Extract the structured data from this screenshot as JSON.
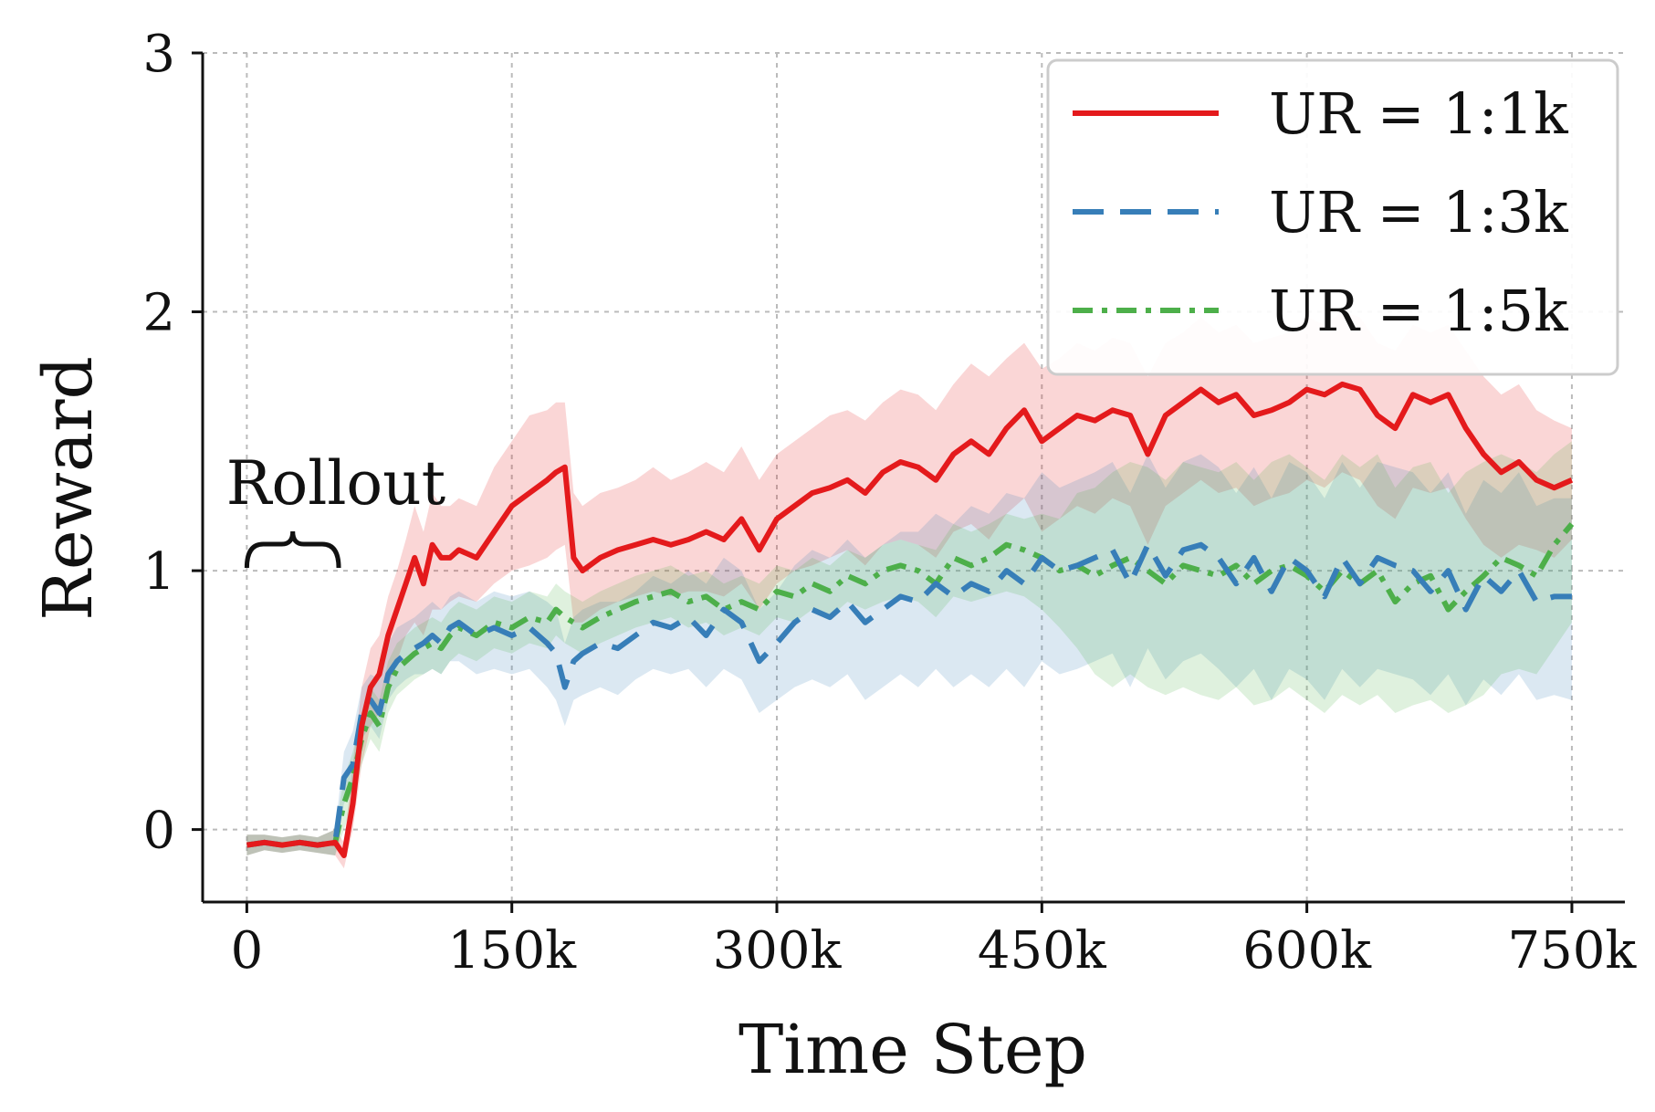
{
  "chart_data": {
    "type": "line",
    "xlabel": "Time Step",
    "ylabel": "Reward",
    "xlim": [
      -25000,
      780000
    ],
    "ylim": [
      -0.28,
      3.0
    ],
    "x_ticks": [
      0,
      150000,
      300000,
      450000,
      600000,
      750000
    ],
    "x_tick_labels": [
      "0",
      "150k",
      "300k",
      "450k",
      "600k",
      "750k"
    ],
    "y_ticks": [
      0,
      1,
      2,
      3
    ],
    "y_tick_labels": [
      "0",
      "1",
      "2",
      "3"
    ],
    "grid": true,
    "legend_position": "top-right",
    "annotation": {
      "text": "Rollout",
      "x_range": [
        0,
        52000
      ]
    },
    "series": [
      {
        "name": "UR = 1:1k",
        "color": "#e41a1c",
        "style": "solid",
        "x": [
          0,
          10000,
          20000,
          30000,
          40000,
          50000,
          55000,
          60000,
          65000,
          70000,
          75000,
          80000,
          85000,
          90000,
          95000,
          100000,
          105000,
          110000,
          115000,
          120000,
          130000,
          140000,
          150000,
          160000,
          170000,
          175000,
          180000,
          185000,
          190000,
          200000,
          210000,
          220000,
          230000,
          240000,
          250000,
          260000,
          270000,
          280000,
          290000,
          300000,
          310000,
          320000,
          330000,
          340000,
          350000,
          360000,
          370000,
          380000,
          390000,
          400000,
          410000,
          420000,
          430000,
          440000,
          450000,
          460000,
          470000,
          480000,
          490000,
          500000,
          510000,
          520000,
          530000,
          540000,
          550000,
          560000,
          570000,
          580000,
          590000,
          600000,
          610000,
          620000,
          630000,
          640000,
          650000,
          660000,
          670000,
          680000,
          690000,
          700000,
          710000,
          720000,
          730000,
          740000,
          750000
        ],
        "y": [
          -0.06,
          -0.05,
          -0.06,
          -0.05,
          -0.06,
          -0.05,
          -0.1,
          0.1,
          0.4,
          0.55,
          0.6,
          0.75,
          0.85,
          0.95,
          1.05,
          0.95,
          1.1,
          1.05,
          1.05,
          1.08,
          1.05,
          1.15,
          1.25,
          1.3,
          1.35,
          1.38,
          1.4,
          1.05,
          1.0,
          1.05,
          1.08,
          1.1,
          1.12,
          1.1,
          1.12,
          1.15,
          1.12,
          1.2,
          1.08,
          1.2,
          1.25,
          1.3,
          1.32,
          1.35,
          1.3,
          1.38,
          1.42,
          1.4,
          1.35,
          1.45,
          1.5,
          1.45,
          1.55,
          1.62,
          1.5,
          1.55,
          1.6,
          1.58,
          1.62,
          1.6,
          1.45,
          1.6,
          1.65,
          1.7,
          1.65,
          1.68,
          1.6,
          1.62,
          1.65,
          1.7,
          1.68,
          1.72,
          1.7,
          1.6,
          1.55,
          1.68,
          1.65,
          1.68,
          1.55,
          1.45,
          1.38,
          1.42,
          1.35,
          1.32,
          1.35
        ],
        "band_low": [
          -0.1,
          -0.08,
          -0.09,
          -0.08,
          -0.09,
          -0.1,
          -0.15,
          0.0,
          0.25,
          0.4,
          0.45,
          0.55,
          0.65,
          0.75,
          0.8,
          0.75,
          0.85,
          0.85,
          0.88,
          0.9,
          0.88,
          0.95,
          1.0,
          1.02,
          1.05,
          1.08,
          1.1,
          0.8,
          0.8,
          0.85,
          0.88,
          0.9,
          0.92,
          0.9,
          0.92,
          0.92,
          0.9,
          0.95,
          0.85,
          0.95,
          1.0,
          1.02,
          1.05,
          1.08,
          1.02,
          1.1,
          1.12,
          1.1,
          1.05,
          1.15,
          1.18,
          1.12,
          1.22,
          1.28,
          1.15,
          1.2,
          1.25,
          1.22,
          1.28,
          1.25,
          1.1,
          1.25,
          1.3,
          1.35,
          1.3,
          1.32,
          1.25,
          1.28,
          1.3,
          1.35,
          1.32,
          1.38,
          1.35,
          1.25,
          1.2,
          1.32,
          1.3,
          1.32,
          1.2,
          1.1,
          1.05,
          1.1,
          1.08,
          1.05,
          1.12
        ],
        "band_high": [
          -0.02,
          -0.02,
          -0.03,
          -0.02,
          -0.03,
          0.0,
          -0.05,
          0.25,
          0.55,
          0.7,
          0.75,
          0.9,
          1.0,
          1.12,
          1.25,
          1.15,
          1.3,
          1.25,
          1.25,
          1.28,
          1.25,
          1.4,
          1.5,
          1.6,
          1.62,
          1.65,
          1.65,
          1.3,
          1.25,
          1.3,
          1.32,
          1.35,
          1.4,
          1.35,
          1.38,
          1.42,
          1.38,
          1.48,
          1.35,
          1.45,
          1.5,
          1.55,
          1.6,
          1.62,
          1.58,
          1.65,
          1.7,
          1.68,
          1.62,
          1.72,
          1.8,
          1.75,
          1.82,
          1.88,
          1.78,
          1.82,
          1.88,
          1.85,
          1.9,
          1.88,
          1.75,
          1.88,
          1.92,
          1.98,
          1.92,
          1.95,
          1.88,
          1.9,
          1.92,
          1.98,
          1.95,
          2.0,
          1.98,
          1.88,
          1.85,
          1.95,
          1.92,
          1.95,
          1.85,
          1.75,
          1.68,
          1.72,
          1.62,
          1.58,
          1.55
        ]
      },
      {
        "name": "UR = 1:3k",
        "color": "#377eb8",
        "style": "dashed",
        "x": [
          0,
          10000,
          20000,
          30000,
          40000,
          50000,
          55000,
          60000,
          65000,
          70000,
          75000,
          80000,
          85000,
          90000,
          95000,
          100000,
          105000,
          110000,
          115000,
          120000,
          130000,
          140000,
          150000,
          160000,
          170000,
          175000,
          180000,
          185000,
          190000,
          200000,
          210000,
          220000,
          230000,
          240000,
          250000,
          260000,
          270000,
          280000,
          290000,
          300000,
          310000,
          320000,
          330000,
          340000,
          350000,
          360000,
          370000,
          380000,
          390000,
          400000,
          410000,
          420000,
          430000,
          440000,
          450000,
          460000,
          470000,
          480000,
          490000,
          500000,
          510000,
          520000,
          530000,
          540000,
          550000,
          560000,
          570000,
          580000,
          590000,
          600000,
          610000,
          620000,
          630000,
          640000,
          650000,
          660000,
          670000,
          680000,
          690000,
          700000,
          710000,
          720000,
          730000,
          740000,
          750000
        ],
        "y": [
          -0.06,
          -0.05,
          -0.06,
          -0.05,
          -0.06,
          -0.05,
          0.2,
          0.25,
          0.45,
          0.5,
          0.45,
          0.6,
          0.65,
          0.68,
          0.7,
          0.72,
          0.75,
          0.72,
          0.78,
          0.8,
          0.75,
          0.78,
          0.75,
          0.78,
          0.72,
          0.68,
          0.55,
          0.65,
          0.68,
          0.72,
          0.7,
          0.75,
          0.8,
          0.78,
          0.82,
          0.75,
          0.85,
          0.8,
          0.65,
          0.72,
          0.8,
          0.85,
          0.82,
          0.88,
          0.8,
          0.85,
          0.9,
          0.88,
          0.95,
          0.9,
          0.95,
          0.92,
          1.0,
          0.95,
          1.05,
          1.0,
          1.02,
          1.05,
          1.08,
          0.95,
          1.1,
          0.98,
          1.08,
          1.1,
          1.05,
          0.95,
          1.05,
          0.92,
          1.05,
          1.0,
          0.9,
          1.05,
          0.95,
          1.05,
          1.02,
          1.0,
          0.92,
          1.0,
          0.85,
          0.98,
          0.92,
          1.0,
          0.88,
          0.9,
          0.9
        ],
        "band_low": [
          -0.1,
          -0.08,
          -0.09,
          -0.08,
          -0.09,
          -0.1,
          0.1,
          0.15,
          0.35,
          0.4,
          0.35,
          0.5,
          0.55,
          0.58,
          0.6,
          0.6,
          0.62,
          0.6,
          0.65,
          0.65,
          0.6,
          0.62,
          0.6,
          0.62,
          0.55,
          0.5,
          0.4,
          0.5,
          0.52,
          0.55,
          0.52,
          0.58,
          0.62,
          0.6,
          0.62,
          0.55,
          0.62,
          0.58,
          0.45,
          0.5,
          0.55,
          0.58,
          0.55,
          0.6,
          0.5,
          0.55,
          0.6,
          0.55,
          0.62,
          0.55,
          0.6,
          0.55,
          0.62,
          0.55,
          0.65,
          0.6,
          0.62,
          0.65,
          0.68,
          0.55,
          0.7,
          0.58,
          0.65,
          0.68,
          0.62,
          0.55,
          0.62,
          0.5,
          0.62,
          0.58,
          0.5,
          0.62,
          0.55,
          0.62,
          0.6,
          0.58,
          0.52,
          0.6,
          0.48,
          0.58,
          0.52,
          0.6,
          0.5,
          0.52,
          0.5
        ],
        "band_high": [
          -0.02,
          -0.02,
          -0.03,
          -0.02,
          -0.03,
          0.0,
          0.3,
          0.38,
          0.55,
          0.6,
          0.58,
          0.72,
          0.78,
          0.8,
          0.82,
          0.85,
          0.88,
          0.85,
          0.9,
          0.92,
          0.88,
          0.92,
          0.9,
          0.92,
          0.88,
          0.85,
          0.72,
          0.82,
          0.85,
          0.88,
          0.88,
          0.92,
          0.98,
          0.95,
          1.0,
          0.95,
          1.05,
          1.0,
          0.85,
          0.92,
          1.02,
          1.08,
          1.05,
          1.12,
          1.05,
          1.1,
          1.15,
          1.15,
          1.22,
          1.18,
          1.25,
          1.22,
          1.3,
          1.28,
          1.38,
          1.32,
          1.35,
          1.38,
          1.42,
          1.3,
          1.45,
          1.32,
          1.42,
          1.45,
          1.4,
          1.3,
          1.4,
          1.28,
          1.42,
          1.38,
          1.28,
          1.42,
          1.32,
          1.42,
          1.4,
          1.38,
          1.3,
          1.38,
          1.22,
          1.35,
          1.3,
          1.38,
          1.25,
          1.28,
          1.28
        ]
      },
      {
        "name": "UR = 1:5k",
        "color": "#4daf4a",
        "style": "dashdot",
        "x": [
          0,
          10000,
          20000,
          30000,
          40000,
          50000,
          55000,
          60000,
          65000,
          70000,
          75000,
          80000,
          85000,
          90000,
          95000,
          100000,
          105000,
          110000,
          115000,
          120000,
          130000,
          140000,
          150000,
          160000,
          170000,
          175000,
          180000,
          185000,
          190000,
          200000,
          210000,
          220000,
          230000,
          240000,
          250000,
          260000,
          270000,
          280000,
          290000,
          300000,
          310000,
          320000,
          330000,
          340000,
          350000,
          360000,
          370000,
          380000,
          390000,
          400000,
          410000,
          420000,
          430000,
          440000,
          450000,
          460000,
          470000,
          480000,
          490000,
          500000,
          510000,
          520000,
          530000,
          540000,
          550000,
          560000,
          570000,
          580000,
          590000,
          600000,
          610000,
          620000,
          630000,
          640000,
          650000,
          660000,
          670000,
          680000,
          690000,
          700000,
          710000,
          720000,
          730000,
          740000,
          750000
        ],
        "y": [
          -0.06,
          -0.05,
          -0.06,
          -0.05,
          -0.06,
          -0.05,
          0.1,
          0.2,
          0.35,
          0.45,
          0.4,
          0.55,
          0.62,
          0.65,
          0.68,
          0.7,
          0.72,
          0.7,
          0.75,
          0.78,
          0.75,
          0.8,
          0.78,
          0.82,
          0.8,
          0.85,
          0.82,
          0.8,
          0.78,
          0.82,
          0.85,
          0.88,
          0.9,
          0.92,
          0.88,
          0.9,
          0.85,
          0.88,
          0.85,
          0.92,
          0.9,
          0.95,
          0.92,
          0.98,
          0.95,
          1.0,
          1.02,
          1.0,
          0.95,
          1.05,
          1.02,
          1.05,
          1.1,
          1.08,
          1.05,
          1.0,
          1.02,
          0.98,
          1.02,
          1.05,
          1.0,
          0.95,
          1.02,
          1.0,
          0.98,
          1.02,
          0.95,
          1.0,
          1.02,
          0.98,
          0.92,
          1.0,
          0.95,
          1.0,
          0.88,
          0.95,
          0.98,
          0.85,
          0.92,
          0.98,
          1.05,
          1.02,
          0.98,
          1.1,
          1.18
        ],
        "band_low": [
          -0.1,
          -0.08,
          -0.09,
          -0.08,
          -0.09,
          -0.1,
          0.0,
          0.1,
          0.25,
          0.35,
          0.3,
          0.45,
          0.52,
          0.55,
          0.58,
          0.6,
          0.62,
          0.6,
          0.65,
          0.68,
          0.65,
          0.7,
          0.68,
          0.72,
          0.7,
          0.75,
          0.72,
          0.7,
          0.68,
          0.72,
          0.75,
          0.78,
          0.8,
          0.82,
          0.78,
          0.8,
          0.75,
          0.78,
          0.75,
          0.82,
          0.8,
          0.85,
          0.82,
          0.88,
          0.85,
          0.88,
          0.9,
          0.88,
          0.82,
          0.9,
          0.88,
          0.9,
          0.92,
          0.9,
          0.85,
          0.78,
          0.7,
          0.6,
          0.55,
          0.6,
          0.55,
          0.52,
          0.55,
          0.52,
          0.5,
          0.55,
          0.48,
          0.5,
          0.55,
          0.5,
          0.45,
          0.52,
          0.48,
          0.52,
          0.45,
          0.48,
          0.5,
          0.45,
          0.48,
          0.52,
          0.6,
          0.62,
          0.6,
          0.7,
          0.8
        ],
        "band_high": [
          -0.02,
          -0.02,
          -0.03,
          -0.02,
          -0.03,
          0.0,
          0.2,
          0.3,
          0.45,
          0.55,
          0.5,
          0.65,
          0.72,
          0.75,
          0.78,
          0.8,
          0.82,
          0.8,
          0.85,
          0.88,
          0.85,
          0.9,
          0.88,
          0.92,
          0.9,
          0.95,
          0.92,
          0.9,
          0.88,
          0.92,
          0.95,
          0.98,
          1.0,
          1.02,
          0.98,
          1.0,
          0.95,
          0.98,
          0.95,
          1.02,
          1.0,
          1.05,
          1.02,
          1.08,
          1.05,
          1.1,
          1.12,
          1.1,
          1.08,
          1.18,
          1.15,
          1.18,
          1.22,
          1.2,
          1.22,
          1.2,
          1.3,
          1.32,
          1.38,
          1.42,
          1.4,
          1.35,
          1.42,
          1.4,
          1.38,
          1.42,
          1.35,
          1.42,
          1.45,
          1.4,
          1.35,
          1.45,
          1.4,
          1.45,
          1.32,
          1.4,
          1.42,
          1.3,
          1.38,
          1.42,
          1.45,
          1.42,
          1.38,
          1.45,
          1.5
        ]
      }
    ]
  }
}
